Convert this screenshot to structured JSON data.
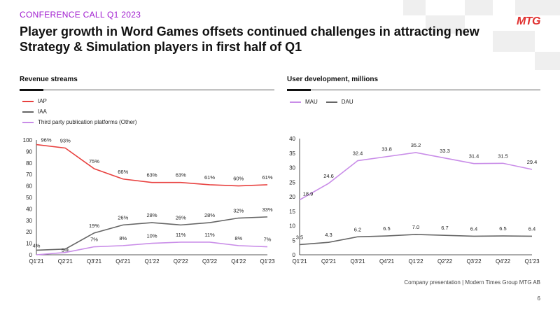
{
  "header": {
    "kicker": "CONFERENCE CALL Q1 2023",
    "title": "Player growth in Word Games offsets continued challenges in attracting new Strategy & Simulation players in first half of Q1",
    "logo_text": "MTG"
  },
  "colors": {
    "accent": "#a01ccf",
    "iap": "#e8413f",
    "iaa": "#666666",
    "other": "#c98de8",
    "mau": "#c98de8",
    "dau": "#666666",
    "logo": "#e0302f"
  },
  "left_panel": {
    "title": "Revenue streams"
  },
  "right_panel": {
    "title": "User development, millions"
  },
  "chart_data": [
    {
      "type": "line",
      "title": "Revenue streams",
      "categories": [
        "Q1'21",
        "Q2'21",
        "Q3'21",
        "Q4'21",
        "Q1'22",
        "Q2'22",
        "Q3'22",
        "Q4'22",
        "Q1'23"
      ],
      "ylim": [
        0,
        100
      ],
      "yticks": [
        0,
        10,
        20,
        30,
        40,
        50,
        60,
        70,
        80,
        90,
        100
      ],
      "legend": [
        "IAP",
        "IAA",
        "Third party publication platforms (Other)"
      ],
      "series": [
        {
          "name": "IAP",
          "values": [
            96,
            93,
            75,
            66,
            63,
            63,
            61,
            60,
            61
          ],
          "labels": [
            "96%",
            "93%",
            "75%",
            "66%",
            "63%",
            "63%",
            "61%",
            "60%",
            "61%"
          ]
        },
        {
          "name": "IAA",
          "values": [
            4,
            5,
            19,
            26,
            28,
            26,
            28,
            32,
            33
          ],
          "labels": [
            "4%",
            "5%",
            "19%",
            "26%",
            "28%",
            "26%",
            "28%",
            "32%",
            "33%"
          ]
        },
        {
          "name": "Third party publication platforms (Other)",
          "values": [
            0,
            2,
            7,
            8,
            10,
            11,
            11,
            8,
            7
          ],
          "labels": [
            "",
            "",
            "7%",
            "8%",
            "10%",
            "11%",
            "11%",
            "8%",
            "7%"
          ]
        }
      ]
    },
    {
      "type": "line",
      "title": "User development, millions",
      "categories": [
        "Q1'21",
        "Q2'21",
        "Q3'21",
        "Q4'21",
        "Q1'22",
        "Q2'22",
        "Q3'22",
        "Q4'22",
        "Q1'23"
      ],
      "ylim": [
        0,
        40
      ],
      "yticks": [
        0,
        5,
        10,
        15,
        20,
        25,
        30,
        35,
        40
      ],
      "legend": [
        "MAU",
        "DAU"
      ],
      "series": [
        {
          "name": "MAU",
          "values": [
            18.9,
            24.6,
            32.4,
            33.8,
            35.2,
            33.3,
            31.4,
            31.5,
            29.4
          ],
          "labels": [
            "18.9",
            "24.6",
            "32.4",
            "33.8",
            "35.2",
            "33.3",
            "31.4",
            "31.5",
            "29.4"
          ]
        },
        {
          "name": "DAU",
          "values": [
            3.5,
            4.3,
            6.2,
            6.5,
            7.0,
            6.7,
            6.4,
            6.5,
            6.4
          ],
          "labels": [
            "3.5",
            "4.3",
            "6.2",
            "6.5",
            "7.0",
            "6.7",
            "6.4",
            "6.5",
            "6.4"
          ]
        }
      ]
    }
  ],
  "footer": {
    "text": "Company presentation | Modern Times Group MTG AB",
    "page": "6"
  }
}
